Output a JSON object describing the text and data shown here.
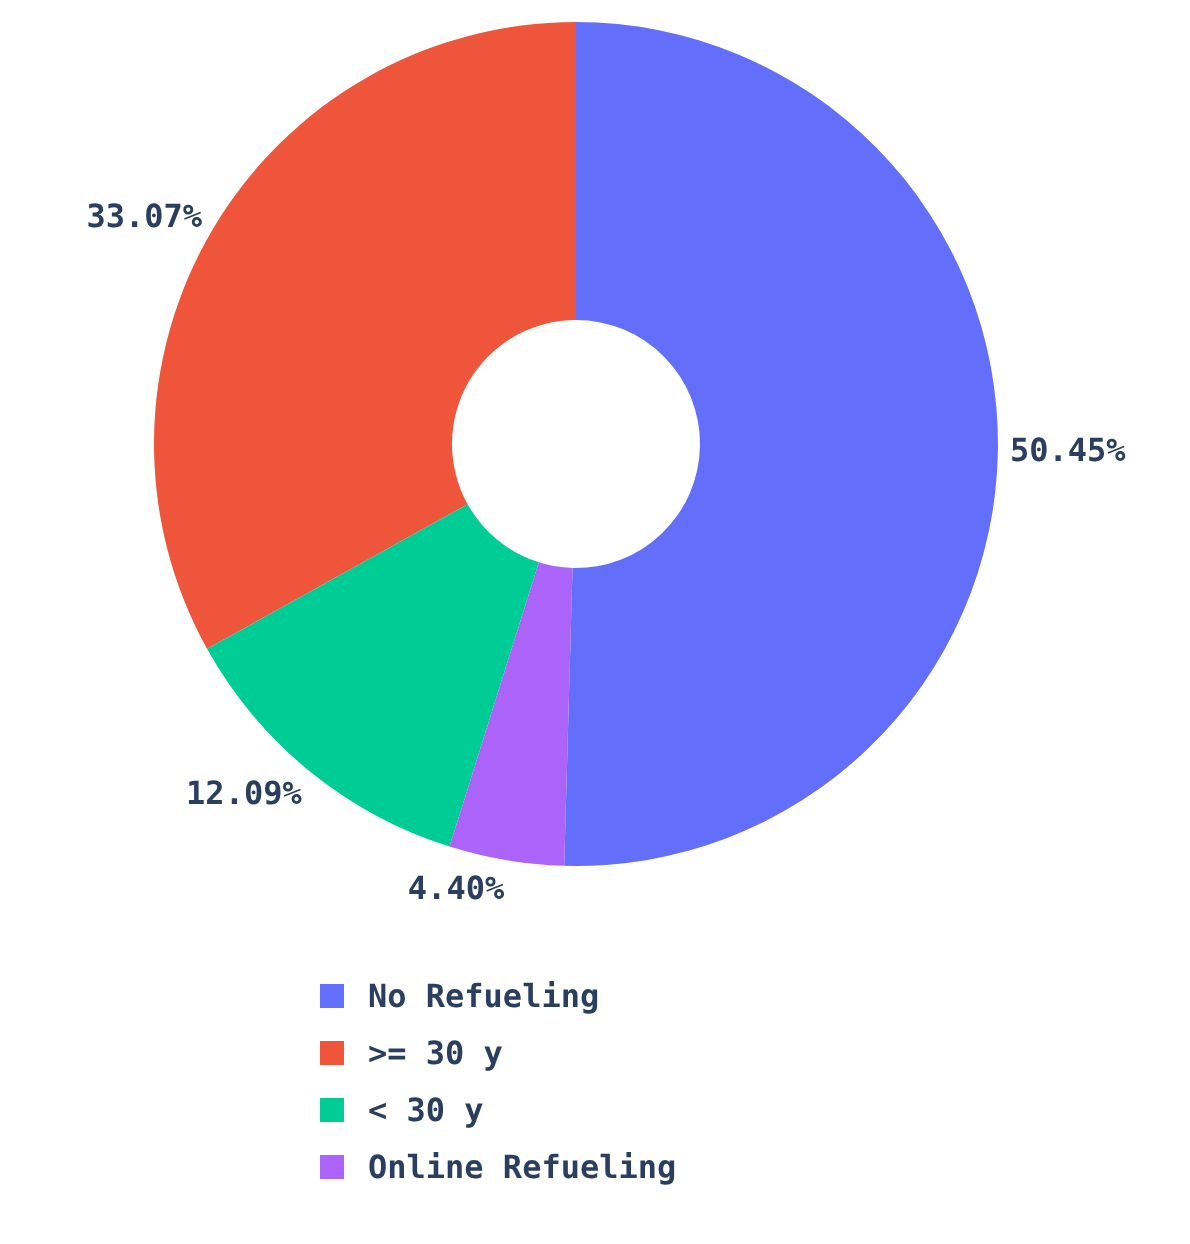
{
  "chart_data": {
    "type": "donut",
    "categories": [
      "No Refueling",
      ">= 30 y",
      "< 30 y",
      "Online Refueling"
    ],
    "values": [
      50.45,
      33.07,
      12.09,
      4.4
    ],
    "colors": [
      "#636efa",
      "#ef553b",
      "#00cc96",
      "#ab63fa"
    ],
    "value_labels": [
      "50.45%",
      "33.07%",
      "12.09%",
      "4.40%"
    ],
    "legend": "bottom"
  }
}
